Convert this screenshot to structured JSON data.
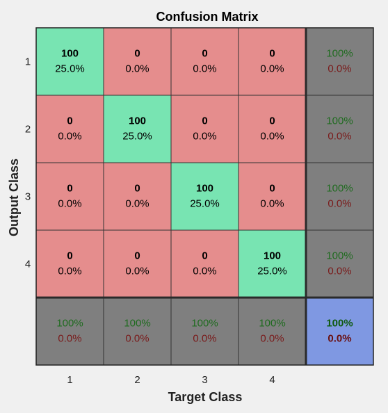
{
  "chart_data": {
    "type": "heatmap",
    "title": "Confusion Matrix",
    "xlabel": "Target Class",
    "ylabel": "Output Class",
    "x_categories": [
      "1",
      "2",
      "3",
      "4"
    ],
    "y_categories": [
      "1",
      "2",
      "3",
      "4"
    ],
    "matrix": [
      {
        "cells": [
          {
            "count": "100",
            "percent": "25.0%"
          },
          {
            "count": "0",
            "percent": "0.0%"
          },
          {
            "count": "0",
            "percent": "0.0%"
          },
          {
            "count": "0",
            "percent": "0.0%"
          }
        ],
        "summary": {
          "correct": "100%",
          "error": "0.0%"
        }
      },
      {
        "cells": [
          {
            "count": "0",
            "percent": "0.0%"
          },
          {
            "count": "100",
            "percent": "25.0%"
          },
          {
            "count": "0",
            "percent": "0.0%"
          },
          {
            "count": "0",
            "percent": "0.0%"
          }
        ],
        "summary": {
          "correct": "100%",
          "error": "0.0%"
        }
      },
      {
        "cells": [
          {
            "count": "0",
            "percent": "0.0%"
          },
          {
            "count": "0",
            "percent": "0.0%"
          },
          {
            "count": "100",
            "percent": "25.0%"
          },
          {
            "count": "0",
            "percent": "0.0%"
          }
        ],
        "summary": {
          "correct": "100%",
          "error": "0.0%"
        }
      },
      {
        "cells": [
          {
            "count": "0",
            "percent": "0.0%"
          },
          {
            "count": "0",
            "percent": "0.0%"
          },
          {
            "count": "0",
            "percent": "0.0%"
          },
          {
            "count": "100",
            "percent": "25.0%"
          }
        ],
        "summary": {
          "correct": "100%",
          "error": "0.0%"
        }
      }
    ],
    "column_summary": [
      {
        "correct": "100%",
        "error": "0.0%"
      },
      {
        "correct": "100%",
        "error": "0.0%"
      },
      {
        "correct": "100%",
        "error": "0.0%"
      },
      {
        "correct": "100%",
        "error": "0.0%"
      }
    ],
    "overall": {
      "correct": "100%",
      "error": "0.0%"
    }
  },
  "colors": {
    "background": "#f0f0f0",
    "correct_cell": "#78e4b2",
    "incorrect_cell": "#e58d8d",
    "summary_cell": "#7f7f7f",
    "overall_cell": "#7f98e2",
    "correct_text": "#1f6b1f",
    "error_text": "#7a1a1a",
    "overall_correct_text": "#0f5a0f",
    "overall_error_text": "#6a0f0f",
    "grid_line": "#333333"
  }
}
